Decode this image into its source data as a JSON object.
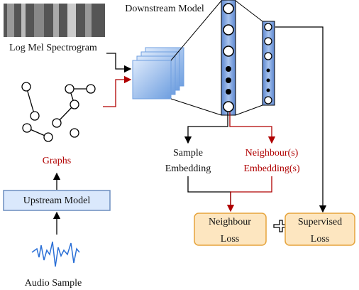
{
  "title": "Downstream Model",
  "inputs": {
    "spectrogram": "Log Mel Spectrogram",
    "graphs": "Graphs",
    "upstream": "Upstream Model",
    "audio": "Audio Sample"
  },
  "embeddings": {
    "sample": [
      "Sample",
      "Embedding"
    ],
    "neighbour": [
      "Neighbour(s)",
      "Embedding(s)"
    ]
  },
  "losses": {
    "neighbour": [
      "Neighbour",
      "Loss"
    ],
    "supervised": [
      "Supervised",
      "Loss"
    ]
  }
}
